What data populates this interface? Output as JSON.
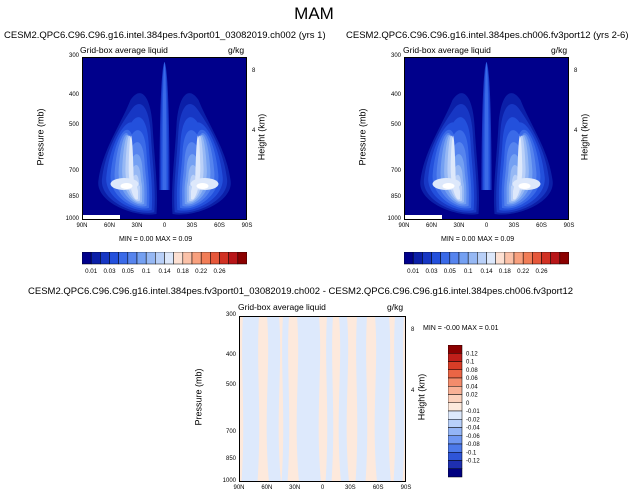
{
  "page": {
    "title": "MAM"
  },
  "panels": [
    {
      "id": "left",
      "title": "CESM2.QPC6.C96.C96.g16.intel.384pes.fv3port01_03082019.ch002 (yrs 1)",
      "subtitle_left": "Grid-box average liquid",
      "subtitle_right": "g/kg",
      "minmax": "MIN =   0.00   MAX =   0.09"
    },
    {
      "id": "right",
      "title": "CESM2.QPC6.C96.C96.g16.intel.384pes.ch006.fv3port12 (yrs 2-6)",
      "subtitle_left": "Grid-box average liquid",
      "subtitle_right": "g/kg",
      "minmax": "MIN =   0.00   MAX =   0.09"
    },
    {
      "id": "diff",
      "title": "CESM2.QPC6.C96.C96.g16.intel.384pes.fv3port01_03082019.ch002 - CESM2.QPC6.C96.C96.g16.intel.384pes.ch006.fv3port12",
      "subtitle_left": "Grid-box average liquid",
      "subtitle_right": "g/kg",
      "minmax": "MIN =  -0.00   MAX =   0.01"
    }
  ],
  "colors": {
    "top_levels": [
      "#00008b",
      "#0b1fa8",
      "#1737c4",
      "#2350dc",
      "#3a6ae8",
      "#5684ee",
      "#74a0f2",
      "#96b8f4",
      "#b9d0f8",
      "#dde8fb"
    ],
    "top_positive": [
      "#fde0d2",
      "#fbc1a8",
      "#f8a07e",
      "#f17d57",
      "#e6573a",
      "#d13123",
      "#b81518",
      "#8b0000"
    ],
    "diff_scale": [
      "#000080",
      "#1e2fb0",
      "#2f55d8",
      "#4c79ea",
      "#6f97f2",
      "#94b5f6",
      "#b8d0fa",
      "#dde9fc",
      "#fde9dc",
      "#fcd1bc",
      "#f9b196",
      "#f38c6c",
      "#ea6545",
      "#d83d27",
      "#c01f1a",
      "#8b0000"
    ],
    "diff_fill_neg": "#dde9fc",
    "diff_fill_pos": "#fde9dc"
  },
  "chart_data": [
    {
      "type": "heatmap",
      "panel": "left",
      "xlabel": "",
      "ylabel": "Pressure (mb)",
      "ylabel_right": "Height (km)",
      "x_ticks": [
        "90N",
        "60N",
        "30N",
        "0",
        "30S",
        "60S",
        "90S"
      ],
      "y_ticks": [
        "300",
        "400",
        "500",
        "700",
        "850",
        "1000"
      ],
      "y_right_ticks": [
        "8",
        "4"
      ],
      "ylim": [
        1000,
        300
      ],
      "xlim": [
        90,
        -90
      ],
      "value_range": [
        0.0,
        0.09
      ]
    },
    {
      "type": "heatmap",
      "panel": "right",
      "xlabel": "",
      "ylabel": "Pressure (mb)",
      "ylabel_right": "Height (km)",
      "x_ticks": [
        "90N",
        "60N",
        "30N",
        "0",
        "30S",
        "60S",
        "90S"
      ],
      "y_ticks": [
        "300",
        "400",
        "500",
        "700",
        "850",
        "1000"
      ],
      "y_right_ticks": [
        "8",
        "4"
      ],
      "ylim": [
        1000,
        300
      ],
      "xlim": [
        90,
        -90
      ],
      "value_range": [
        0.0,
        0.09
      ]
    },
    {
      "type": "heatmap",
      "panel": "diff",
      "xlabel": "",
      "ylabel": "Pressure (mb)",
      "ylabel_right": "Height (km)",
      "x_ticks": [
        "90N",
        "60N",
        "30N",
        "0",
        "30S",
        "60S",
        "90S"
      ],
      "y_ticks": [
        "300",
        "400",
        "500",
        "700",
        "850",
        "1000"
      ],
      "y_right_ticks": [
        "8",
        "4"
      ],
      "ylim": [
        1000,
        300
      ],
      "xlim": [
        90,
        -90
      ],
      "value_range": [
        -0.0,
        0.01
      ]
    }
  ],
  "colorbar_top": {
    "labels": [
      "0.01",
      "0.03",
      "0.05",
      "0.1",
      "0.14",
      "0.18",
      "0.22",
      "0.26"
    ]
  },
  "colorbar_diff": {
    "labels": [
      "0.12",
      "0.1",
      "0.08",
      "0.06",
      "0.04",
      "0.02",
      "0",
      "-0.01",
      "-0.02",
      "-0.04",
      "-0.06",
      "-0.08",
      "-0.1",
      "-0.12"
    ]
  }
}
